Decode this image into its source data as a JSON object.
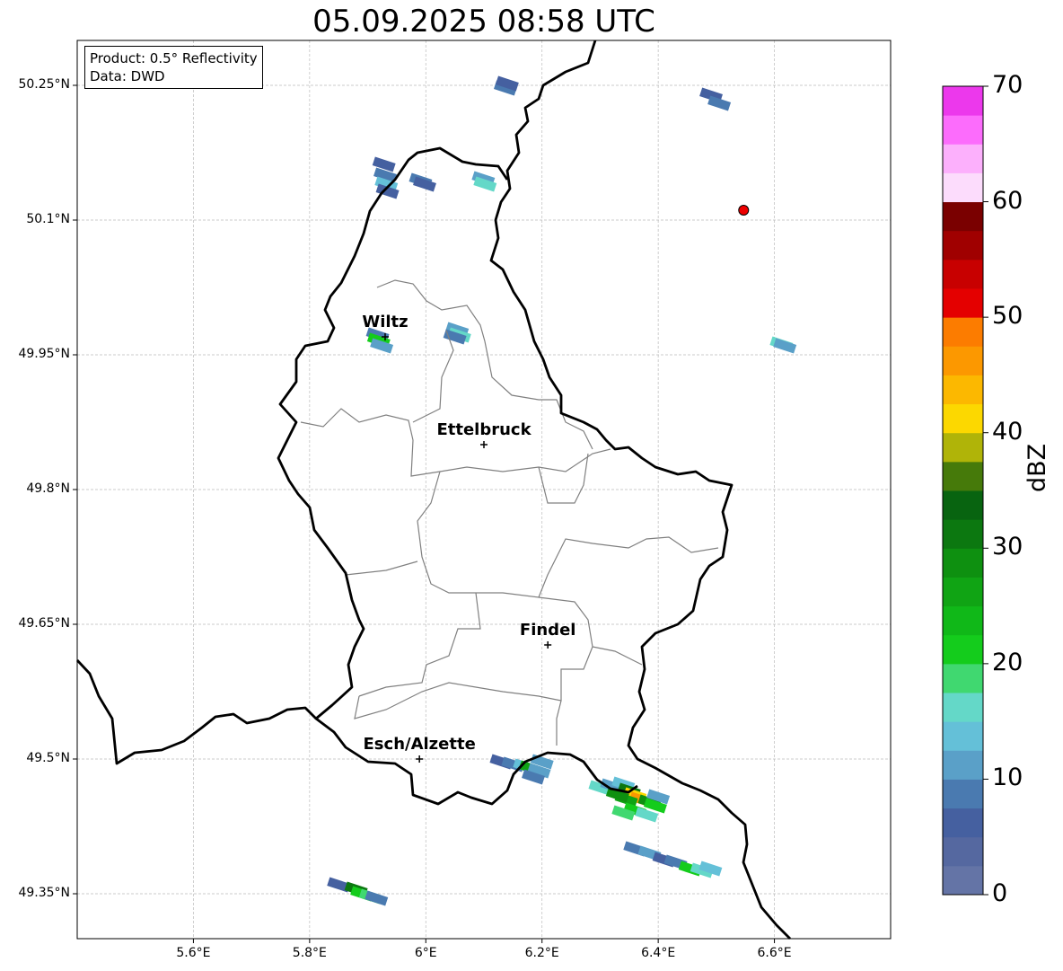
{
  "title": "05.09.2025 08:58 UTC",
  "info_box": {
    "product": "Product: 0.5° Reflectivity",
    "source": "Data: DWD"
  },
  "lon_ticks": [
    {
      "v": 5.6,
      "label": "5.6°E"
    },
    {
      "v": 5.8,
      "label": "5.8°E"
    },
    {
      "v": 6.0,
      "label": "6°E"
    },
    {
      "v": 6.2,
      "label": "6.2°E"
    },
    {
      "v": 6.4,
      "label": "6.4°E"
    },
    {
      "v": 6.6,
      "label": "6.6°E"
    }
  ],
  "lat_ticks": [
    {
      "v": 50.25,
      "label": "50.25°N"
    },
    {
      "v": 50.1,
      "label": "50.1°N"
    },
    {
      "v": 49.95,
      "label": "49.95°N"
    },
    {
      "v": 49.8,
      "label": "49.8°N"
    },
    {
      "v": 49.65,
      "label": "49.65°N"
    },
    {
      "v": 49.5,
      "label": "49.5°N"
    },
    {
      "v": 49.35,
      "label": "49.35°N"
    }
  ],
  "extent": {
    "lon": [
      5.4,
      6.8
    ],
    "lat": [
      49.3,
      50.3
    ]
  },
  "colorbar": {
    "label": "dBZ",
    "min": 0,
    "max": 70,
    "step": 2.5,
    "ticks": [
      "0",
      "10",
      "20",
      "30",
      "40",
      "50",
      "60",
      "70"
    ],
    "colors": [
      "#6474a6",
      "#5568a0",
      "#4560a0",
      "#4a7ab0",
      "#5aa0c8",
      "#64c0d8",
      "#64d8c8",
      "#40d870",
      "#14cc1c",
      "#10b818",
      "#10a414",
      "#0e9010",
      "#0c7810",
      "#086410",
      "#467a0a",
      "#b0b408",
      "#fcd800",
      "#fcb800",
      "#fc9800",
      "#fc7c00",
      "#e40000",
      "#c80000",
      "#a00000",
      "#7a0000",
      "#fcdcfc",
      "#fcb0fc",
      "#fc6cfc",
      "#ec38ec"
    ]
  },
  "cities": [
    {
      "name": "Wiltz",
      "lon": 5.93,
      "lat": 49.97
    },
    {
      "name": "Ettelbruck",
      "lon": 6.1,
      "lat": 49.85
    },
    {
      "name": "Findel",
      "lon": 6.21,
      "lat": 49.627
    },
    {
      "name": "Esch/Alzette",
      "lon": 5.989,
      "lat": 49.5
    }
  ],
  "radar_site": {
    "lon": 6.547,
    "lat": 50.111,
    "color": "#ee0000"
  },
  "echoes": [
    [
      6.137,
      50.247,
      8
    ],
    [
      6.14,
      50.252,
      6
    ],
    [
      5.93,
      50.15,
      8
    ],
    [
      5.932,
      50.14,
      14
    ],
    [
      5.934,
      50.132,
      6
    ],
    [
      5.928,
      50.162,
      6
    ],
    [
      5.991,
      50.144,
      8
    ],
    [
      5.998,
      50.14,
      6
    ],
    [
      6.099,
      50.146,
      10
    ],
    [
      6.102,
      50.14,
      16
    ],
    [
      6.491,
      50.239,
      6
    ],
    [
      6.505,
      50.23,
      8
    ],
    [
      6.054,
      49.978,
      12
    ],
    [
      6.058,
      49.972,
      16
    ],
    [
      6.05,
      49.97,
      8
    ],
    [
      5.917,
      49.972,
      8
    ],
    [
      5.919,
      49.966,
      22
    ],
    [
      5.924,
      49.96,
      12
    ],
    [
      6.612,
      49.962,
      16
    ],
    [
      6.618,
      49.96,
      10
    ],
    [
      6.13,
      49.497,
      6
    ],
    [
      6.15,
      49.494,
      8
    ],
    [
      6.17,
      49.492,
      14
    ],
    [
      6.18,
      49.49,
      25
    ],
    [
      6.195,
      49.487,
      12
    ],
    [
      6.2,
      49.497,
      10
    ],
    [
      6.185,
      49.48,
      8
    ],
    [
      6.3,
      49.468,
      16
    ],
    [
      6.32,
      49.47,
      10
    ],
    [
      6.34,
      49.472,
      14
    ],
    [
      6.35,
      49.465,
      30
    ],
    [
      6.36,
      49.46,
      42
    ],
    [
      6.37,
      49.455,
      46
    ],
    [
      6.345,
      49.455,
      25
    ],
    [
      6.385,
      49.452,
      28
    ],
    [
      6.395,
      49.448,
      20
    ],
    [
      6.36,
      49.443,
      22
    ],
    [
      6.34,
      49.44,
      18
    ],
    [
      6.38,
      49.438,
      16
    ],
    [
      6.33,
      49.46,
      28
    ],
    [
      6.4,
      49.458,
      12
    ],
    [
      6.36,
      49.4,
      8
    ],
    [
      6.385,
      49.395,
      10
    ],
    [
      6.41,
      49.388,
      6
    ],
    [
      6.43,
      49.385,
      8
    ],
    [
      6.455,
      49.378,
      20
    ],
    [
      6.475,
      49.376,
      16
    ],
    [
      6.49,
      49.378,
      14
    ],
    [
      5.85,
      49.36,
      6
    ],
    [
      5.88,
      49.355,
      30
    ],
    [
      5.89,
      49.35,
      22
    ],
    [
      5.905,
      49.347,
      18
    ],
    [
      5.915,
      49.345,
      8
    ]
  ]
}
